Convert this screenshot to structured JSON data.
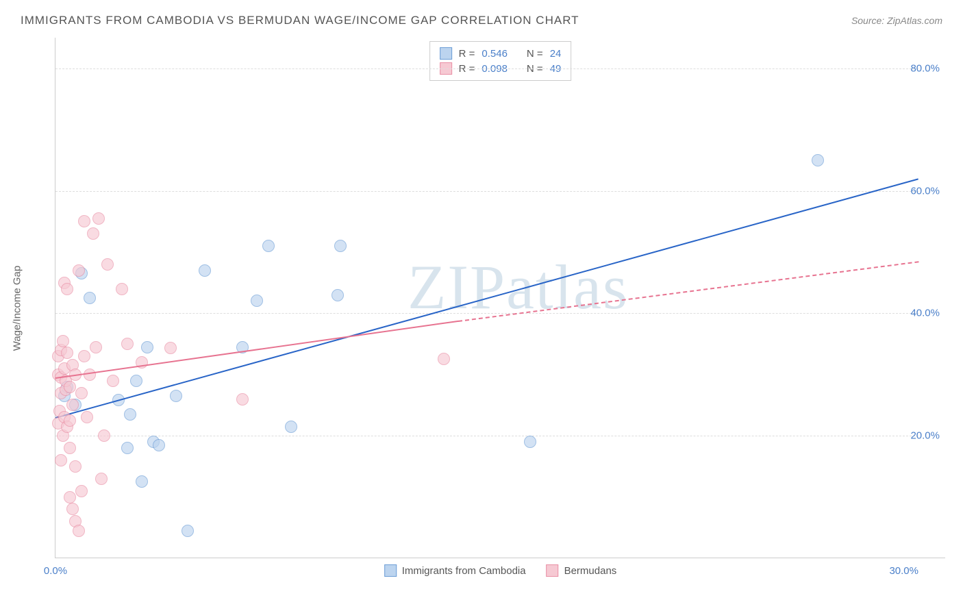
{
  "title": "IMMIGRANTS FROM CAMBODIA VS BERMUDAN WAGE/INCOME GAP CORRELATION CHART",
  "source": "Source: ZipAtlas.com",
  "watermark": "ZIPatlas",
  "ylabel": "Wage/Income Gap",
  "chart": {
    "type": "scatter",
    "xlim": [
      0,
      30
    ],
    "ylim": [
      0,
      85
    ],
    "xticks": [
      {
        "val": 0,
        "label": "0.0%"
      },
      {
        "val": 30,
        "label": "30.0%"
      }
    ],
    "yticks": [
      {
        "val": 20,
        "label": "20.0%"
      },
      {
        "val": 40,
        "label": "40.0%"
      },
      {
        "val": 60,
        "label": "60.0%"
      },
      {
        "val": 80,
        "label": "80.0%"
      }
    ],
    "grid_color": "#dddddd",
    "background_color": "#ffffff",
    "marker_radius": 9
  },
  "series": [
    {
      "name": "Immigrants from Cambodia",
      "fill": "#bcd4ef",
      "stroke": "#6c9dd6",
      "line_color": "#2864c7",
      "R": "0.546",
      "N": "24",
      "trend": {
        "x1": 0,
        "y1": 23,
        "x2": 30,
        "y2": 62,
        "dashed": false
      },
      "points": [
        [
          0.3,
          26.5
        ],
        [
          0.4,
          28
        ],
        [
          0.7,
          25
        ],
        [
          0.9,
          46.5
        ],
        [
          1.2,
          42.5
        ],
        [
          2.2,
          25.8
        ],
        [
          2.5,
          18
        ],
        [
          2.6,
          23.5
        ],
        [
          2.8,
          29
        ],
        [
          3.0,
          12.5
        ],
        [
          3.2,
          34.5
        ],
        [
          3.4,
          19
        ],
        [
          3.6,
          18.5
        ],
        [
          4.2,
          26.5
        ],
        [
          4.6,
          4.5
        ],
        [
          5.2,
          47
        ],
        [
          6.5,
          34.5
        ],
        [
          7.0,
          42
        ],
        [
          7.4,
          51
        ],
        [
          8.2,
          21.5
        ],
        [
          9.8,
          43
        ],
        [
          9.9,
          51
        ],
        [
          16.5,
          19
        ],
        [
          26.5,
          65
        ]
      ]
    },
    {
      "name": "Bermudans",
      "fill": "#f6c9d3",
      "stroke": "#e98fa5",
      "line_color": "#e77390",
      "R": "0.098",
      "N": "49",
      "trend_solid": {
        "x1": 0,
        "y1": 29.5,
        "x2": 14,
        "y2": 38.8
      },
      "trend_dashed": {
        "x1": 14,
        "y1": 38.8,
        "x2": 30,
        "y2": 48.5
      },
      "points": [
        [
          0.1,
          22
        ],
        [
          0.1,
          30
        ],
        [
          0.1,
          33
        ],
        [
          0.15,
          24
        ],
        [
          0.2,
          16
        ],
        [
          0.2,
          27
        ],
        [
          0.2,
          29.5
        ],
        [
          0.2,
          34
        ],
        [
          0.25,
          20
        ],
        [
          0.25,
          35.5
        ],
        [
          0.3,
          23
        ],
        [
          0.3,
          31
        ],
        [
          0.3,
          45
        ],
        [
          0.35,
          27.5
        ],
        [
          0.35,
          29
        ],
        [
          0.4,
          21.5
        ],
        [
          0.4,
          33.5
        ],
        [
          0.4,
          44
        ],
        [
          0.5,
          10
        ],
        [
          0.5,
          18
        ],
        [
          0.5,
          22.5
        ],
        [
          0.5,
          28
        ],
        [
          0.6,
          8
        ],
        [
          0.6,
          25
        ],
        [
          0.6,
          31.5
        ],
        [
          0.7,
          6
        ],
        [
          0.7,
          15
        ],
        [
          0.7,
          30
        ],
        [
          0.8,
          4.5
        ],
        [
          0.8,
          47
        ],
        [
          0.9,
          11
        ],
        [
          0.9,
          27
        ],
        [
          1.0,
          33
        ],
        [
          1.0,
          55
        ],
        [
          1.1,
          23
        ],
        [
          1.2,
          30
        ],
        [
          1.3,
          53
        ],
        [
          1.4,
          34.5
        ],
        [
          1.5,
          55.5
        ],
        [
          1.6,
          13
        ],
        [
          1.7,
          20
        ],
        [
          1.8,
          48
        ],
        [
          2.0,
          29
        ],
        [
          2.3,
          44
        ],
        [
          2.5,
          35
        ],
        [
          3.0,
          32
        ],
        [
          4.0,
          34.3
        ],
        [
          6.5,
          26
        ],
        [
          13.5,
          32.5
        ]
      ]
    }
  ],
  "legend_labels": {
    "R": "R =",
    "N": "N ="
  }
}
